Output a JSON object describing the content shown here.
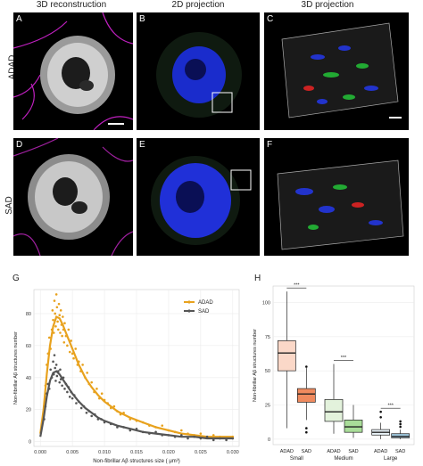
{
  "columns": [
    "3D reconstruction",
    "2D projection",
    "3D projection"
  ],
  "rows": [
    "ADAD",
    "SAD"
  ],
  "panel_labels": [
    "A",
    "B",
    "C",
    "D",
    "E",
    "F"
  ],
  "graph_labels": [
    "G",
    "H"
  ],
  "colors": {
    "adad": "#e8a21e",
    "sad": "#555555",
    "adad_box_small": "#fbd8c8",
    "sad_box_small": "#ef8a5e",
    "adad_box_medium": "#e3f2dc",
    "sad_box_medium": "#a9dd99",
    "adad_box_large": "#e9f3f8",
    "sad_box_large": "#9fc8dd"
  },
  "chart_data": [
    {
      "type": "scatter",
      "xlabel": "Non-fibrillar Aβ structures size ( μm³)",
      "ylabel": "Non-fibrillar Aβ structures number",
      "xticks": [
        "0.000",
        "0.005",
        "0.010",
        "0.015",
        "0.020",
        "0.025",
        "0.030"
      ],
      "yticks": [
        "0",
        "20",
        "40",
        "60",
        "80"
      ],
      "xlim": [
        -0.001,
        0.031
      ],
      "ylim": [
        -3,
        95
      ],
      "grid": true,
      "legend_position": "top-right",
      "series": [
        {
          "name": "ADAD",
          "fit": [
            [
              0.0,
              5
            ],
            [
              0.0005,
              20
            ],
            [
              0.001,
              42
            ],
            [
              0.0015,
              60
            ],
            [
              0.002,
              72
            ],
            [
              0.0025,
              78
            ],
            [
              0.003,
              77
            ],
            [
              0.0035,
              73
            ],
            [
              0.004,
              68
            ],
            [
              0.005,
              58
            ],
            [
              0.006,
              48
            ],
            [
              0.007,
              40
            ],
            [
              0.008,
              34
            ],
            [
              0.009,
              29
            ],
            [
              0.01,
              25
            ],
            [
              0.012,
              19
            ],
            [
              0.014,
              15
            ],
            [
              0.016,
              12
            ],
            [
              0.018,
              9
            ],
            [
              0.02,
              7
            ],
            [
              0.022,
              5
            ],
            [
              0.024,
              4
            ],
            [
              0.026,
              3
            ],
            [
              0.028,
              3
            ],
            [
              0.03,
              3
            ]
          ],
          "points": [
            [
              0.0006,
              22
            ],
            [
              0.0008,
              35
            ],
            [
              0.001,
              48
            ],
            [
              0.0012,
              55
            ],
            [
              0.0014,
              65
            ],
            [
              0.0016,
              58
            ],
            [
              0.0018,
              70
            ],
            [
              0.0019,
              82
            ],
            [
              0.002,
              76
            ],
            [
              0.0021,
              68
            ],
            [
              0.0022,
              88
            ],
            [
              0.0023,
              80
            ],
            [
              0.0024,
              72
            ],
            [
              0.0025,
              92
            ],
            [
              0.0026,
              84
            ],
            [
              0.0027,
              75
            ],
            [
              0.0028,
              70
            ],
            [
              0.0029,
              86
            ],
            [
              0.003,
              79
            ],
            [
              0.0031,
              68
            ],
            [
              0.0032,
              82
            ],
            [
              0.0033,
              73
            ],
            [
              0.0034,
              66
            ],
            [
              0.0035,
              78
            ],
            [
              0.0036,
              70
            ],
            [
              0.0037,
              62
            ],
            [
              0.0038,
              74
            ],
            [
              0.004,
              66
            ],
            [
              0.0042,
              60
            ],
            [
              0.0044,
              70
            ],
            [
              0.0046,
              56
            ],
            [
              0.0048,
              63
            ],
            [
              0.005,
              55
            ],
            [
              0.0052,
              52
            ],
            [
              0.0055,
              58
            ],
            [
              0.0058,
              48
            ],
            [
              0.006,
              50
            ],
            [
              0.0063,
              44
            ],
            [
              0.0066,
              48
            ],
            [
              0.007,
              40
            ],
            [
              0.0073,
              43
            ],
            [
              0.0076,
              36
            ],
            [
              0.008,
              37
            ],
            [
              0.0084,
              31
            ],
            [
              0.0088,
              33
            ],
            [
              0.0092,
              27
            ],
            [
              0.0096,
              30
            ],
            [
              0.01,
              26
            ],
            [
              0.0105,
              24
            ],
            [
              0.011,
              21
            ],
            [
              0.0115,
              22
            ],
            [
              0.012,
              19
            ],
            [
              0.0125,
              17
            ],
            [
              0.013,
              18
            ],
            [
              0.014,
              14
            ],
            [
              0.015,
              13
            ],
            [
              0.016,
              12
            ],
            [
              0.017,
              10
            ],
            [
              0.018,
              9
            ],
            [
              0.019,
              10
            ],
            [
              0.02,
              7
            ],
            [
              0.021,
              6
            ],
            [
              0.022,
              7
            ],
            [
              0.023,
              5
            ],
            [
              0.024,
              4
            ],
            [
              0.025,
              5
            ],
            [
              0.026,
              3
            ],
            [
              0.027,
              4
            ],
            [
              0.028,
              3
            ],
            [
              0.029,
              2
            ],
            [
              0.03,
              3
            ]
          ]
        },
        {
          "name": "SAD",
          "fit": [
            [
              0.0,
              3
            ],
            [
              0.0005,
              14
            ],
            [
              0.001,
              28
            ],
            [
              0.0015,
              38
            ],
            [
              0.002,
              43
            ],
            [
              0.0025,
              44
            ],
            [
              0.003,
              42
            ],
            [
              0.0035,
              39
            ],
            [
              0.004,
              36
            ],
            [
              0.005,
              30
            ],
            [
              0.006,
              25
            ],
            [
              0.007,
              21
            ],
            [
              0.008,
              18
            ],
            [
              0.009,
              15
            ],
            [
              0.01,
              13
            ],
            [
              0.012,
              10
            ],
            [
              0.014,
              8
            ],
            [
              0.016,
              6
            ],
            [
              0.018,
              5
            ],
            [
              0.02,
              4
            ],
            [
              0.022,
              3
            ],
            [
              0.024,
              3
            ],
            [
              0.026,
              2
            ],
            [
              0.028,
              2
            ],
            [
              0.03,
              2
            ]
          ],
          "points": [
            [
              0.0006,
              14
            ],
            [
              0.0008,
              22
            ],
            [
              0.001,
              30
            ],
            [
              0.0012,
              36
            ],
            [
              0.0014,
              33
            ],
            [
              0.0016,
              45
            ],
            [
              0.0018,
              40
            ],
            [
              0.002,
              50
            ],
            [
              0.0021,
              42
            ],
            [
              0.0022,
              54
            ],
            [
              0.0023,
              46
            ],
            [
              0.0024,
              38
            ],
            [
              0.0025,
              48
            ],
            [
              0.0026,
              41
            ],
            [
              0.0028,
              44
            ],
            [
              0.003,
              37
            ],
            [
              0.0031,
              45
            ],
            [
              0.0032,
              39
            ],
            [
              0.0034,
              35
            ],
            [
              0.0036,
              40
            ],
            [
              0.0038,
              33
            ],
            [
              0.004,
              36
            ],
            [
              0.0042,
              31
            ],
            [
              0.0044,
              34
            ],
            [
              0.0046,
              28
            ],
            [
              0.0048,
              31
            ],
            [
              0.005,
              27
            ],
            [
              0.0053,
              29
            ],
            [
              0.0056,
              24
            ],
            [
              0.006,
              25
            ],
            [
              0.0064,
              21
            ],
            [
              0.0068,
              22
            ],
            [
              0.0072,
              18
            ],
            [
              0.0076,
              19
            ],
            [
              0.008,
              16
            ],
            [
              0.0085,
              17
            ],
            [
              0.009,
              14
            ],
            [
              0.0095,
              14
            ],
            [
              0.01,
              12
            ],
            [
              0.011,
              11
            ],
            [
              0.012,
              9
            ],
            [
              0.013,
              9
            ],
            [
              0.014,
              7
            ],
            [
              0.015,
              8
            ],
            [
              0.016,
              6
            ],
            [
              0.017,
              5
            ],
            [
              0.018,
              6
            ],
            [
              0.019,
              4
            ],
            [
              0.02,
              4
            ],
            [
              0.021,
              3
            ],
            [
              0.022,
              4
            ],
            [
              0.023,
              2
            ],
            [
              0.024,
              3
            ],
            [
              0.025,
              2
            ],
            [
              0.026,
              3
            ],
            [
              0.027,
              1
            ],
            [
              0.028,
              2
            ],
            [
              0.029,
              1
            ],
            [
              0.03,
              2
            ]
          ]
        }
      ]
    },
    {
      "type": "box",
      "ylabel": "Non-fibrillar Aβ structures number",
      "yticks": [
        "0",
        "25",
        "50",
        "75",
        "100"
      ],
      "ylim": [
        -4,
        112
      ],
      "significance": "***",
      "groups": [
        {
          "name": "Small",
          "boxes": [
            {
              "label": "ADAD",
              "q1": 50,
              "median": 63,
              "q3": 72,
              "whisker_low": 8,
              "whisker_high": 108,
              "outliers": []
            },
            {
              "label": "SAD",
              "q1": 27,
              "median": 33,
              "q3": 37,
              "whisker_low": 14,
              "whisker_high": 52,
              "outliers": [
                5,
                8,
                53
              ]
            }
          ]
        },
        {
          "name": "Medium",
          "boxes": [
            {
              "label": "ADAD",
              "q1": 13,
              "median": 20,
              "q3": 29,
              "whisker_low": 4,
              "whisker_high": 55,
              "outliers": []
            },
            {
              "label": "SAD",
              "q1": 5,
              "median": 9,
              "q3": 14,
              "whisker_low": 1,
              "whisker_high": 25,
              "outliers": []
            }
          ]
        },
        {
          "name": "Large",
          "boxes": [
            {
              "label": "ADAD",
              "q1": 3,
              "median": 5,
              "q3": 7,
              "whisker_low": 0,
              "whisker_high": 12,
              "outliers": [
                16,
                20
              ]
            },
            {
              "label": "SAD",
              "q1": 1,
              "median": 2,
              "q3": 4,
              "whisker_low": 0,
              "whisker_high": 7,
              "outliers": [
                9,
                11,
                13
              ]
            }
          ]
        }
      ]
    }
  ]
}
